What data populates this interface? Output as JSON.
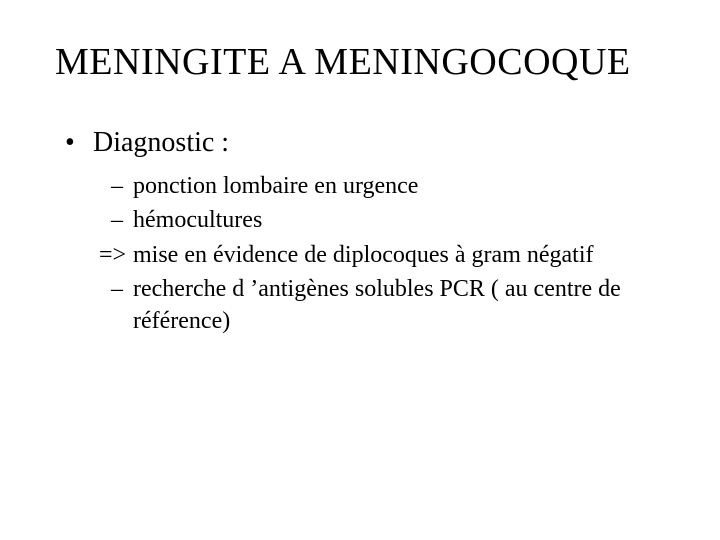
{
  "colors": {
    "background": "#ffffff",
    "text": "#000000"
  },
  "typography": {
    "title_fontsize": 38,
    "level1_fontsize": 28,
    "level2_fontsize": 24,
    "font_family": "Garamond / Times-like serif"
  },
  "title": "MENINGITE A MENINGOCOQUE",
  "level1": {
    "item0": {
      "text": "Diagnostic :",
      "sub": {
        "s0": {
          "bullet": "dash",
          "text": "ponction lombaire en urgence"
        },
        "s1": {
          "bullet": "dash",
          "text": "hémocultures"
        },
        "s2": {
          "bullet": "arrow",
          "text": "mise en évidence de diplocoques à gram négatif"
        },
        "s3": {
          "bullet": "dash",
          "text": "recherche d ’antigènes solubles PCR ( au centre de référence)"
        }
      }
    }
  }
}
